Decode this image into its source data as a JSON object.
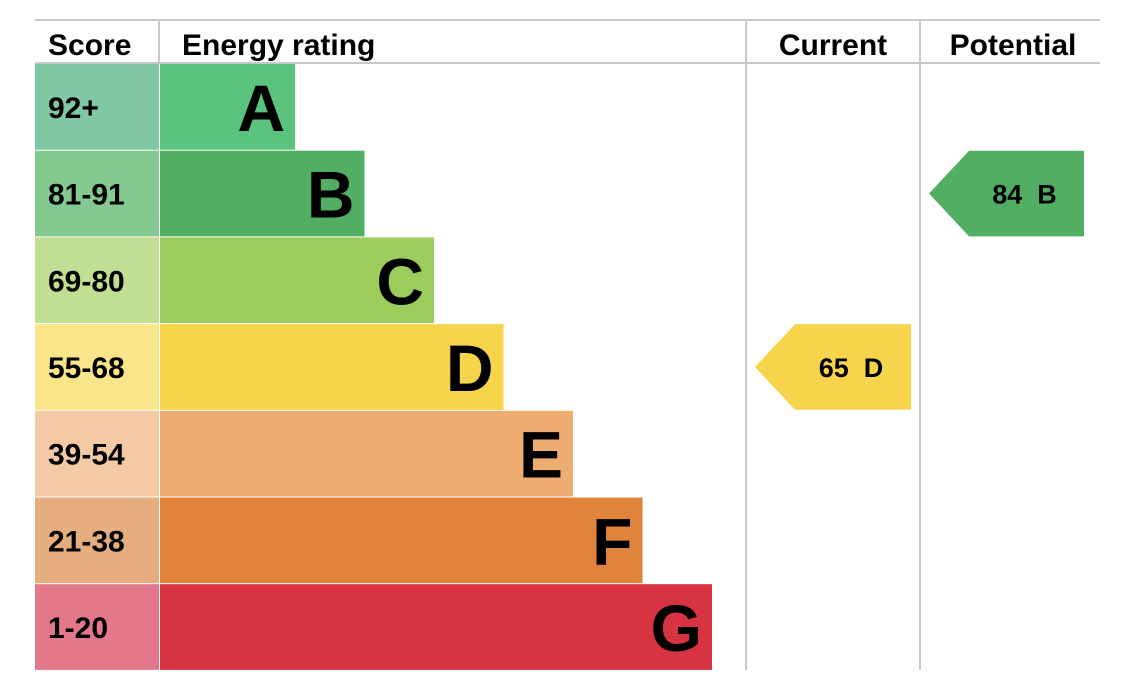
{
  "chart_data": {
    "type": "table",
    "headers": {
      "score": "Score",
      "rating": "Energy rating",
      "current": "Current",
      "potential": "Potential"
    },
    "bands": [
      {
        "letter": "A",
        "score": "92+",
        "color": "#5ac47f",
        "light": "#7fc8a3"
      },
      {
        "letter": "B",
        "score": "81-91",
        "color": "#52ae63",
        "light": "#84c990"
      },
      {
        "letter": "C",
        "score": "69-80",
        "color": "#9ccc5b",
        "light": "#c0df93"
      },
      {
        "letter": "D",
        "score": "55-68",
        "color": "#f6d44b",
        "light": "#f9e68a"
      },
      {
        "letter": "E",
        "score": "39-54",
        "color": "#eeae72",
        "light": "#f4caa4"
      },
      {
        "letter": "F",
        "score": "21-38",
        "color": "#e0833b",
        "light": "#e6ad7f"
      },
      {
        "letter": "G",
        "score": "1-20",
        "color": "#d73341",
        "light": "#e3788a"
      }
    ],
    "current": {
      "value": 65,
      "band": "D",
      "label": "65  D",
      "color": "#f6d44b"
    },
    "potential": {
      "value": 84,
      "band": "B",
      "label": "84  B",
      "color": "#52ae63"
    },
    "grid_color": "#c8c8c8"
  }
}
